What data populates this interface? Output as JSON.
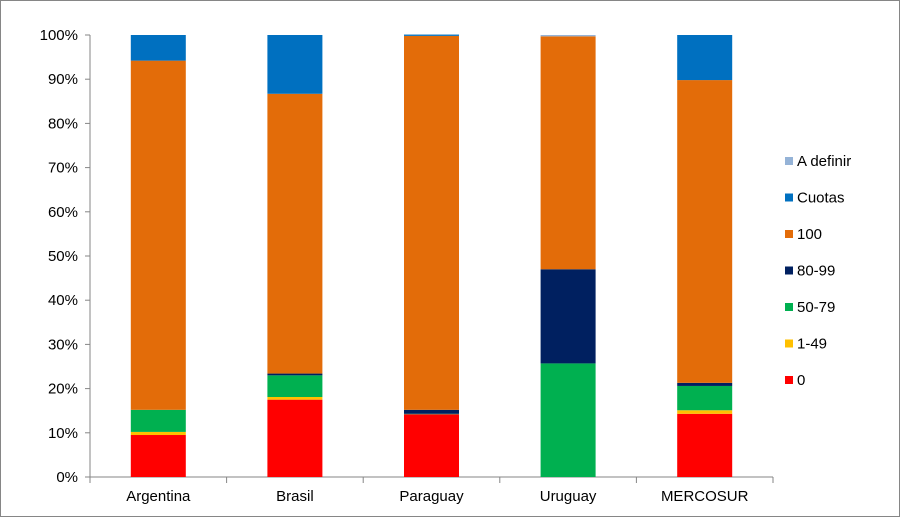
{
  "chart_data": {
    "type": "bar",
    "stacked": true,
    "percent_stacked": true,
    "categories": [
      "Argentina",
      "Brasil",
      "Paraguay",
      "Uruguay",
      "MERCOSUR"
    ],
    "y_ticks": [
      "0%",
      "10%",
      "20%",
      "30%",
      "40%",
      "50%",
      "60%",
      "70%",
      "80%",
      "90%",
      "100%"
    ],
    "ylim": [
      0,
      100
    ],
    "grid": false,
    "legend_position": "right",
    "series": [
      {
        "name": "0",
        "color": "#ff0000",
        "values": [
          9.5,
          17.5,
          14.2,
          0.0,
          14.3
        ]
      },
      {
        "name": "1-49",
        "color": "#ffc000",
        "values": [
          0.7,
          0.6,
          0.0,
          0.0,
          0.8
        ]
      },
      {
        "name": "50-79",
        "color": "#00b050",
        "values": [
          5.0,
          4.9,
          0.1,
          25.7,
          5.5
        ]
      },
      {
        "name": "80-99",
        "color": "#002060",
        "values": [
          0.0,
          0.4,
          0.9,
          21.3,
          0.7
        ]
      },
      {
        "name": "100",
        "color": "#e36c09",
        "values": [
          79.0,
          63.3,
          84.6,
          52.7,
          68.5
        ]
      },
      {
        "name": "Cuotas",
        "color": "#0070c0",
        "values": [
          5.8,
          13.3,
          0.3,
          0.0,
          10.2
        ]
      },
      {
        "name": "A definir",
        "color": "#95b3d7",
        "values": [
          0.0,
          0.0,
          0.0,
          0.3,
          0.0
        ]
      }
    ]
  }
}
